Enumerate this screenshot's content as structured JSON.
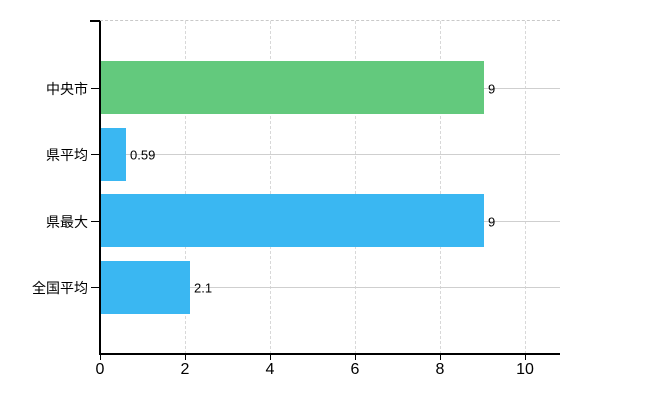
{
  "chart_data": {
    "type": "bar",
    "orientation": "horizontal",
    "title": "",
    "categories": [
      "中央市",
      "県平均",
      "県最大",
      "全国平均"
    ],
    "values": [
      9,
      0.59,
      9,
      2.1
    ],
    "value_labels": [
      "9",
      "0.59",
      "9",
      "2.1"
    ],
    "bar_colors": [
      "#63c97d",
      "#3ab7f2",
      "#3ab7f2",
      "#3ab7f2"
    ],
    "x_ticks": [
      0,
      2,
      4,
      6,
      8,
      10
    ],
    "x_tick_labels": [
      "0",
      "2",
      "4",
      "6",
      "8",
      "10"
    ],
    "xlim": [
      0,
      10.8
    ],
    "grid": {
      "vertical": "dashed",
      "horizontal_at_category_centers": "solid",
      "top_boundary": "dashed"
    },
    "legend": "none",
    "axis_color": "#000000",
    "grid_color": "#d4d4d4",
    "text_color": "#000000",
    "background_color": "#ffffff"
  }
}
